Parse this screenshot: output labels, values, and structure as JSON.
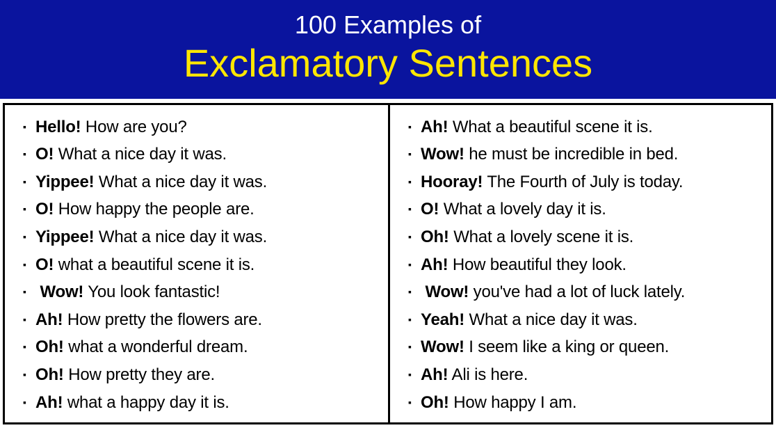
{
  "colors": {
    "header_bg": "#0a149e",
    "header_top_text": "#ffffff",
    "header_bottom_text": "#ffe600",
    "body_bg": "#ffffff",
    "text": "#000000",
    "border": "#000000"
  },
  "typography": {
    "header_top_fontsize": 36,
    "header_bottom_fontsize": 56,
    "item_fontsize": 24,
    "item_lineheight": 1.65,
    "font_family": "Segoe UI, Helvetica Neue, Arial, sans-serif"
  },
  "header": {
    "line1": "100 Examples of",
    "line2": "Exclamatory Sentences"
  },
  "columns": {
    "left": [
      {
        "exclaim": "Hello!",
        "rest": " How are you?"
      },
      {
        "exclaim": "O!",
        "rest": " What a nice day it was."
      },
      {
        "exclaim": "Yippee!",
        "rest": " What a nice day it was."
      },
      {
        "exclaim": "O!",
        "rest": " How happy the people are."
      },
      {
        "exclaim": "Yippee!",
        "rest": " What a nice day it was."
      },
      {
        "exclaim": "O!",
        "rest": " what a beautiful scene it is."
      },
      {
        "exclaim": " Wow!",
        "rest": " You look fantastic!"
      },
      {
        "exclaim": "Ah!",
        "rest": " How pretty the flowers are."
      },
      {
        "exclaim": "Oh!",
        "rest": " what a wonderful dream."
      },
      {
        "exclaim": "Oh!",
        "rest": " How pretty they are."
      },
      {
        "exclaim": "Ah!",
        "rest": " what a happy day it is."
      }
    ],
    "right": [
      {
        "exclaim": "Ah!",
        "rest": " What a beautiful scene it is."
      },
      {
        "exclaim": "Wow!",
        "rest": " he must be incredible in bed."
      },
      {
        "exclaim": "Hooray!",
        "rest": " The Fourth of July is today."
      },
      {
        "exclaim": "O!",
        "rest": " What a lovely day it is."
      },
      {
        "exclaim": "Oh!",
        "rest": " What a lovely scene it is."
      },
      {
        "exclaim": "Ah!",
        "rest": " How beautiful they look."
      },
      {
        "exclaim": " Wow!",
        "rest": " you've had a lot of luck lately."
      },
      {
        "exclaim": "Yeah!",
        "rest": " What a nice day it was."
      },
      {
        "exclaim": "Wow!",
        "rest": " I seem like a king or queen."
      },
      {
        "exclaim": "Ah!",
        "rest": " Ali is here."
      },
      {
        "exclaim": "Oh!",
        "rest": " How happy I am."
      }
    ]
  }
}
